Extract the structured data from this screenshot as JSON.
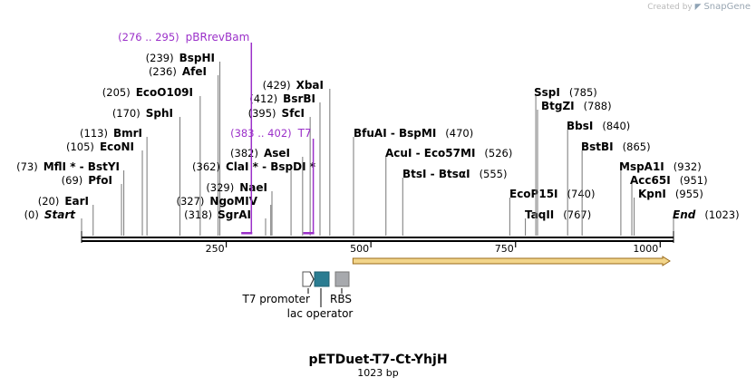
{
  "credit": {
    "prefix": "Created by",
    "brand": "SnapGene",
    "icon": "snapgene-logo-icon"
  },
  "plasmid": {
    "name": "pETDuet-T7-Ct-YhjH",
    "length_label": "1023 bp",
    "length": 1023
  },
  "axis": {
    "ticks": [
      "250",
      "500",
      "750",
      "1000"
    ]
  },
  "enzymes": [
    {
      "name": "Start",
      "pos": 0,
      "pos_label": "(0)",
      "italic": true,
      "dir": "right"
    },
    {
      "name": "EarI",
      "pos": 20,
      "pos_label": "(20)",
      "dir": "right"
    },
    {
      "name": "PfoI",
      "pos": 69,
      "pos_label": "(69)",
      "dir": "right"
    },
    {
      "name": "MflI * - BstYI",
      "pos": 73,
      "pos_label": "(73)",
      "dir": "right"
    },
    {
      "name": "EcoNI",
      "pos": 105,
      "pos_label": "(105)",
      "dir": "right"
    },
    {
      "name": "BmrI",
      "pos": 113,
      "pos_label": "(113)",
      "dir": "right"
    },
    {
      "name": "SphI",
      "pos": 170,
      "pos_label": "(170)",
      "dir": "right"
    },
    {
      "name": "EcoO109I",
      "pos": 205,
      "pos_label": "(205)",
      "dir": "right"
    },
    {
      "name": "AfeI",
      "pos": 236,
      "pos_label": "(236)",
      "dir": "right"
    },
    {
      "name": "BspHI",
      "pos": 239,
      "pos_label": "(239)",
      "dir": "right"
    },
    {
      "name": "SgrAI",
      "pos": 318,
      "pos_label": "(318)",
      "dir": "right"
    },
    {
      "name": "NgoMIV",
      "pos": 327,
      "pos_label": "(327)",
      "dir": "right"
    },
    {
      "name": "NaeI",
      "pos": 329,
      "pos_label": "(329)",
      "dir": "right"
    },
    {
      "name": "ClaI * - BspDI *",
      "pos": 362,
      "pos_label": "(362)",
      "dir": "right"
    },
    {
      "name": "AseI",
      "pos": 382,
      "pos_label": "(382)",
      "dir": "right"
    },
    {
      "name": "SfcI",
      "pos": 395,
      "pos_label": "(395)",
      "dir": "right"
    },
    {
      "name": "BsrBI",
      "pos": 412,
      "pos_label": "(412)",
      "dir": "right"
    },
    {
      "name": "XbaI",
      "pos": 429,
      "pos_label": "(429)",
      "dir": "right"
    },
    {
      "name": "BfuAI - BspMI",
      "pos": 470,
      "pos_label": "(470)",
      "dir": "left"
    },
    {
      "name": "AcuI - Eco57MI",
      "pos": 526,
      "pos_label": "(526)",
      "dir": "left"
    },
    {
      "name": "BtsI - BtsαI",
      "pos": 555,
      "pos_label": "(555)",
      "dir": "left"
    },
    {
      "name": "EcoP15I",
      "pos": 740,
      "pos_label": "(740)",
      "dir": "left"
    },
    {
      "name": "TaqII",
      "pos": 767,
      "pos_label": "(767)",
      "dir": "left"
    },
    {
      "name": "SspI",
      "pos": 785,
      "pos_label": "(785)",
      "dir": "left"
    },
    {
      "name": "BtgZI",
      "pos": 788,
      "pos_label": "(788)",
      "dir": "left"
    },
    {
      "name": "BbsI",
      "pos": 840,
      "pos_label": "(840)",
      "dir": "left"
    },
    {
      "name": "BstBI",
      "pos": 865,
      "pos_label": "(865)",
      "dir": "left"
    },
    {
      "name": "MspA1I",
      "pos": 932,
      "pos_label": "(932)",
      "dir": "left"
    },
    {
      "name": "Acc65I",
      "pos": 951,
      "pos_label": "(951)",
      "dir": "left"
    },
    {
      "name": "KpnI",
      "pos": 955,
      "pos_label": "(955)",
      "dir": "left"
    },
    {
      "name": "End",
      "pos": 1023,
      "pos_label": "(1023)",
      "italic": true,
      "dir": "left"
    }
  ],
  "primers": [
    {
      "name": "pBRrevBam",
      "range_label": "(276 .. 295)",
      "start": 276,
      "end": 295,
      "color": "#9b30c9"
    },
    {
      "name": "T7",
      "range_label": "(383 .. 402)",
      "start": 383,
      "end": 402,
      "color": "#9b30c9"
    }
  ],
  "orf": {
    "start": 469,
    "end": 1023,
    "color": "#f2d58a",
    "edge": "#9a6a1a"
  },
  "legend": [
    {
      "label": "T7 promoter",
      "icon": "promoter-arrow-icon",
      "color": "#ffffff"
    },
    {
      "label": "lac operator",
      "icon": "lac-operator-box-icon",
      "color": "#2a7c91"
    },
    {
      "label": "RBS",
      "icon": "rbs-box-icon",
      "color": "#a7a9ad"
    }
  ]
}
